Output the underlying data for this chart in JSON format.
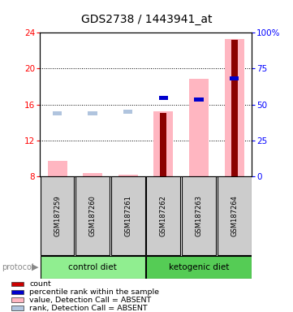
{
  "title": "GDS2738 / 1443941_at",
  "samples": [
    "GSM187259",
    "GSM187260",
    "GSM187261",
    "GSM187262",
    "GSM187263",
    "GSM187264"
  ],
  "ylim_left": [
    8,
    24
  ],
  "ylim_right": [
    0,
    100
  ],
  "yticks_left": [
    8,
    12,
    16,
    20,
    24
  ],
  "yticks_right": [
    0,
    25,
    50,
    75,
    100
  ],
  "ytick_labels_right": [
    "0",
    "25",
    "50",
    "75",
    "100%"
  ],
  "bars_value_absent": {
    "GSM187259": [
      8.0,
      9.7
    ],
    "GSM187260": [
      8.0,
      8.35
    ],
    "GSM187261": [
      8.0,
      8.2
    ],
    "GSM187262": [
      8.0,
      15.2
    ],
    "GSM187263": [
      8.0,
      18.9
    ],
    "GSM187264": [
      8.0,
      23.3
    ]
  },
  "bars_count": {
    "GSM187259": null,
    "GSM187260": null,
    "GSM187261": null,
    "GSM187262": [
      8.0,
      15.05
    ],
    "GSM187263": null,
    "GSM187264": [
      8.0,
      23.2
    ]
  },
  "rank_absent_squares": {
    "GSM187259": 15.0,
    "GSM187260": 15.0,
    "GSM187261": 15.2,
    "GSM187262": null,
    "GSM187263": null,
    "GSM187264": null
  },
  "percentile_rank_squares": {
    "GSM187259": null,
    "GSM187260": null,
    "GSM187261": null,
    "GSM187262": 16.7,
    "GSM187263": 16.55,
    "GSM187264": 18.95
  },
  "color_value_absent": "#FFB6C1",
  "color_count": "#8B0000",
  "color_rank_absent": "#B0C4DE",
  "color_percentile": "#0000CD",
  "bg_plot": "#FFFFFF",
  "sample_box_color": "#CCCCCC",
  "legend_items": [
    {
      "color": "#CC0000",
      "label": "count"
    },
    {
      "color": "#0000CD",
      "label": "percentile rank within the sample"
    },
    {
      "color": "#FFB6C1",
      "label": "value, Detection Call = ABSENT"
    },
    {
      "color": "#B0C4DE",
      "label": "rank, Detection Call = ABSENT"
    }
  ],
  "group_left_color": "#90EE90",
  "group_right_color": "#55CC55",
  "title_fontsize": 10
}
